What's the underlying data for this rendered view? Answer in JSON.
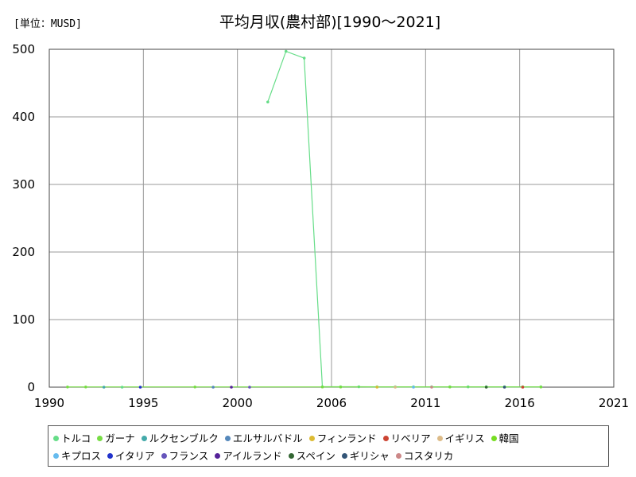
{
  "chart_data": {
    "type": "line",
    "title": "平均月収(農村部)[1990～2021]",
    "unit_label": "[単位：MUSD]",
    "xlim": [
      1990,
      2021
    ],
    "ylim": [
      0,
      500
    ],
    "x_ticks": [
      "1990",
      "1995",
      "2000",
      "2006",
      "2011",
      "2016",
      "2021"
    ],
    "y_ticks": [
      "0",
      "100",
      "200",
      "300",
      "400",
      "500"
    ],
    "grid": true,
    "legend_position": "bottom",
    "series": [
      {
        "name": "トルコ",
        "color": "#66dd88",
        "x": [
          2002,
          2003,
          2004,
          2005,
          2006,
          2007,
          2008,
          2009,
          2010,
          2011,
          2012,
          2013,
          2014,
          2015,
          2016,
          2017
        ],
        "y": [
          422,
          497,
          487,
          0.6,
          0.6,
          0.6,
          0.5,
          0.5,
          0.5,
          0.5,
          0.5,
          0.5,
          0.5,
          0.5,
          0.5,
          0.5
        ]
      },
      {
        "name": "ガーナ",
        "color": "#77dd44",
        "x": [
          1991,
          1992,
          1998,
          2005,
          2006,
          2012,
          2016,
          2017
        ],
        "y": [
          0.3,
          0.3,
          0.3,
          0.3,
          0.3,
          0.3,
          0.3,
          0.3
        ]
      },
      {
        "name": "ルクセンブルク",
        "color": "#44aaaa",
        "x": [],
        "y": []
      },
      {
        "name": "エルサルバドル",
        "color": "#5588bb",
        "x": [],
        "y": []
      },
      {
        "name": "フィンランド",
        "color": "#ddbb33",
        "x": [],
        "y": []
      },
      {
        "name": "リベリア",
        "color": "#cc4433",
        "x": [],
        "y": []
      },
      {
        "name": "イギリス",
        "color": "#ddbb88",
        "x": [],
        "y": []
      },
      {
        "name": "韓国",
        "color": "#77dd22",
        "x": [],
        "y": []
      },
      {
        "name": "キプロス",
        "color": "#66bbee",
        "x": [],
        "y": []
      },
      {
        "name": "イタリア",
        "color": "#2233cc",
        "x": [],
        "y": []
      },
      {
        "name": "フランス",
        "color": "#6655bb",
        "x": [],
        "y": []
      },
      {
        "name": "アイルランド",
        "color": "#552299",
        "x": [],
        "y": []
      },
      {
        "name": "スペイン",
        "color": "#336633",
        "x": [],
        "y": []
      },
      {
        "name": "ギリシャ",
        "color": "#335577",
        "x": [],
        "y": []
      },
      {
        "name": "コスタリカ",
        "color": "#cc8888",
        "x": [],
        "y": []
      }
    ],
    "baseline_points": [
      {
        "series": 0,
        "x": 1994
      },
      {
        "series": 2,
        "x": 1993
      },
      {
        "series": 3,
        "x": 1999
      },
      {
        "series": 4,
        "x": 2008
      },
      {
        "series": 5,
        "x": 2016
      },
      {
        "series": 6,
        "x": 2009
      },
      {
        "series": 8,
        "x": 2010
      },
      {
        "series": 9,
        "x": 1995
      },
      {
        "series": 10,
        "x": 2001
      },
      {
        "series": 11,
        "x": 2000
      },
      {
        "series": 12,
        "x": 2014
      },
      {
        "series": 13,
        "x": 2015
      },
      {
        "series": 14,
        "x": 2011
      }
    ],
    "legend_rows": [
      [
        0,
        1,
        2,
        3,
        4,
        5,
        6,
        7
      ],
      [
        8,
        9,
        10,
        11,
        12,
        13,
        14
      ]
    ]
  }
}
